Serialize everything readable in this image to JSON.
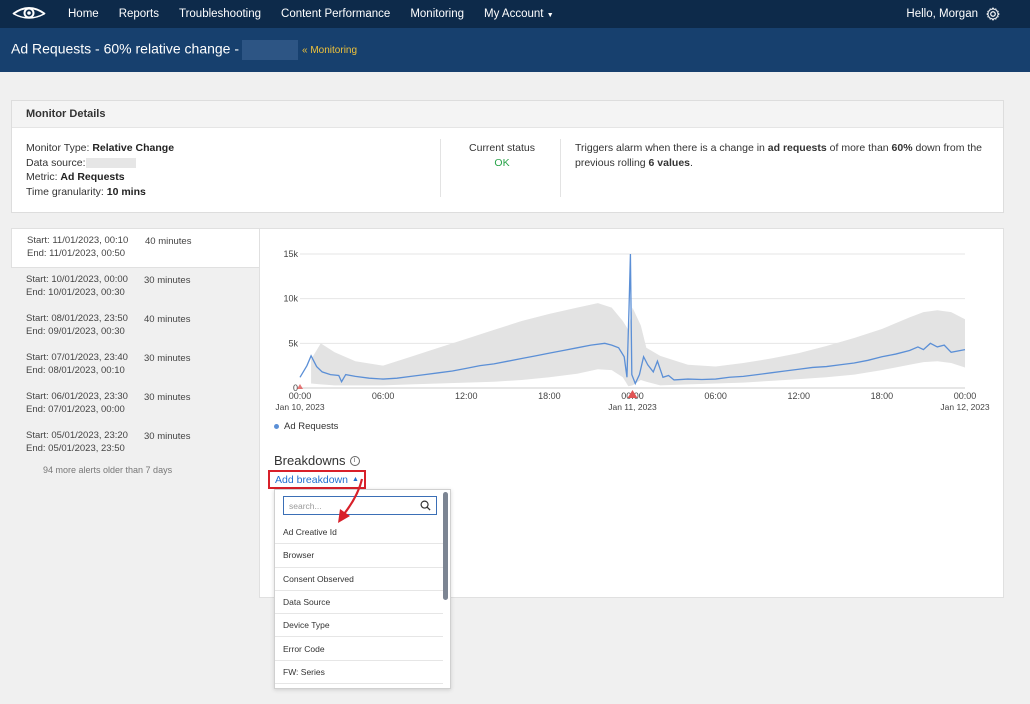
{
  "topnav": {
    "items": [
      "Home",
      "Reports",
      "Troubleshooting",
      "Content Performance",
      "Monitoring",
      "My Account"
    ],
    "greeting": "Hello, Morgan"
  },
  "banner": {
    "title": "Ad Requests - 60% relative change -",
    "link": "« Monitoring"
  },
  "details": {
    "heading": "Monitor Details",
    "monitor_type_label": "Monitor Type:",
    "monitor_type": "Relative Change",
    "data_source_label": "Data source:",
    "metric_label": "Metric:",
    "metric": "Ad Requests",
    "granularity_label": "Time granularity:",
    "granularity": "10 mins",
    "status_label": "Current status",
    "status": "OK",
    "trigger_pre": "Triggers alarm when there is a change in",
    "trigger_metric": "ad requests",
    "trigger_mid": "of more than",
    "trigger_pct": "60%",
    "trigger_mid2": "down from the previous rolling",
    "trigger_values": "6 values",
    "trigger_end": "."
  },
  "alerts": [
    {
      "start": "Start: 11/01/2023, 00:10",
      "end": "End: 11/01/2023, 00:50",
      "duration": "40 minutes"
    },
    {
      "start": "Start: 10/01/2023, 00:00",
      "end": "End: 10/01/2023, 00:30",
      "duration": "30 minutes"
    },
    {
      "start": "Start: 08/01/2023, 23:50",
      "end": "End: 09/01/2023, 00:30",
      "duration": "40 minutes"
    },
    {
      "start": "Start: 07/01/2023, 23:40",
      "end": "End: 08/01/2023, 00:10",
      "duration": "30 minutes"
    },
    {
      "start": "Start: 06/01/2023, 23:30",
      "end": "End: 07/01/2023, 00:00",
      "duration": "30 minutes"
    },
    {
      "start": "Start: 05/01/2023, 23:20",
      "end": "End: 05/01/2023, 23:50",
      "duration": "30 minutes"
    }
  ],
  "more_alerts": "94 more alerts older than 7 days",
  "breakdowns": {
    "title": "Breakdowns",
    "info": "i",
    "add_label": "Add breakdown",
    "search_placeholder": "search...",
    "options": [
      "Ad Creative Id",
      "Browser",
      "Consent Observed",
      "Data Source",
      "Device Type",
      "Error Code",
      "FW: Series"
    ]
  },
  "colors": {
    "nav_bg": "#0d2a4a",
    "banner_bg": "#17406e",
    "link": "#f0c23a",
    "line": "#5b8fd6",
    "band": "#e3e3e3",
    "ok": "#2aa44a",
    "alarm_marker": "#e05555",
    "highlight": "#d8202a"
  },
  "chart_data": {
    "type": "line",
    "legend": "Ad Requests",
    "x_ticks": [
      "00:00",
      "06:00",
      "12:00",
      "18:00",
      "00:00",
      "06:00",
      "12:00",
      "18:00",
      "00:00"
    ],
    "x_date_labels": {
      "0": "Jan 10, 2023",
      "4": "Jan 11, 2023",
      "8": "Jan 12, 2023"
    },
    "y_ticks": [
      "0",
      "5k",
      "10k",
      "15k"
    ],
    "ylim": [
      0,
      15000
    ],
    "xlim_hours": [
      0,
      48
    ],
    "grid": true,
    "series": [
      {
        "name": "Ad Requests",
        "points": [
          [
            0,
            1200
          ],
          [
            0.5,
            2500
          ],
          [
            0.8,
            3600
          ],
          [
            1.2,
            2400
          ],
          [
            1.6,
            1800
          ],
          [
            2.2,
            1500
          ],
          [
            2.8,
            1400
          ],
          [
            3.0,
            700
          ],
          [
            3.3,
            1500
          ],
          [
            4,
            1300
          ],
          [
            5,
            1100
          ],
          [
            6,
            1000
          ],
          [
            7,
            1100
          ],
          [
            8,
            1300
          ],
          [
            9,
            1500
          ],
          [
            10,
            1700
          ],
          [
            11,
            1900
          ],
          [
            12,
            2200
          ],
          [
            13,
            2500
          ],
          [
            14,
            2700
          ],
          [
            15,
            3000
          ],
          [
            16,
            3300
          ],
          [
            17,
            3600
          ],
          [
            18,
            3900
          ],
          [
            19,
            4200
          ],
          [
            20,
            4500
          ],
          [
            21,
            4800
          ],
          [
            22,
            5000
          ],
          [
            22.5,
            4800
          ],
          [
            23,
            4500
          ],
          [
            23.4,
            3500
          ],
          [
            23.6,
            1200
          ],
          [
            23.75,
            9000
          ],
          [
            23.85,
            15000
          ],
          [
            23.95,
            1500
          ],
          [
            24.2,
            500
          ],
          [
            24.5,
            1500
          ],
          [
            24.8,
            3500
          ],
          [
            25.1,
            2600
          ],
          [
            25.5,
            1800
          ],
          [
            25.8,
            3000
          ],
          [
            26.2,
            1200
          ],
          [
            26.6,
            1400
          ],
          [
            27,
            900
          ],
          [
            28,
            1000
          ],
          [
            29,
            950
          ],
          [
            30,
            1000
          ],
          [
            31,
            1200
          ],
          [
            32,
            1300
          ],
          [
            33,
            1500
          ],
          [
            34,
            1700
          ],
          [
            35,
            1900
          ],
          [
            36,
            2100
          ],
          [
            37,
            2300
          ],
          [
            38,
            2400
          ],
          [
            39,
            2600
          ],
          [
            40,
            2800
          ],
          [
            41,
            3100
          ],
          [
            42,
            3500
          ],
          [
            43,
            3800
          ],
          [
            44,
            4200
          ],
          [
            44.6,
            4600
          ],
          [
            45,
            4300
          ],
          [
            45.5,
            5000
          ],
          [
            46,
            4600
          ],
          [
            46.5,
            4800
          ],
          [
            47,
            4000
          ],
          [
            48,
            4300
          ]
        ],
        "band_upper": [
          [
            0.8,
            3200
          ],
          [
            1.5,
            5000
          ],
          [
            2.5,
            4000
          ],
          [
            4,
            3000
          ],
          [
            6,
            2500
          ],
          [
            8,
            3500
          ],
          [
            10,
            4500
          ],
          [
            12,
            5500
          ],
          [
            14,
            6500
          ],
          [
            16,
            7500
          ],
          [
            18,
            8300
          ],
          [
            20,
            9000
          ],
          [
            21.5,
            9500
          ],
          [
            22.5,
            9000
          ],
          [
            23.3,
            7500
          ],
          [
            23.7,
            6500
          ],
          [
            24,
            9000
          ],
          [
            24.6,
            7000
          ],
          [
            25,
            4500
          ],
          [
            26,
            3600
          ],
          [
            28,
            2600
          ],
          [
            30,
            2400
          ],
          [
            32,
            2800
          ],
          [
            34,
            3300
          ],
          [
            36,
            3900
          ],
          [
            38,
            4700
          ],
          [
            40,
            5600
          ],
          [
            42,
            6600
          ],
          [
            44,
            7900
          ],
          [
            45,
            8500
          ],
          [
            46,
            8700
          ],
          [
            47,
            8500
          ],
          [
            48,
            7700
          ]
        ],
        "band_lower": [
          [
            48,
            2300
          ],
          [
            47,
            2800
          ],
          [
            46,
            3000
          ],
          [
            45,
            2900
          ],
          [
            44,
            2600
          ],
          [
            42,
            2000
          ],
          [
            40,
            1500
          ],
          [
            38,
            1200
          ],
          [
            36,
            1000
          ],
          [
            34,
            800
          ],
          [
            32,
            600
          ],
          [
            30,
            500
          ],
          [
            28,
            400
          ],
          [
            26,
            300
          ],
          [
            25,
            700
          ],
          [
            24.6,
            900
          ],
          [
            24,
            300
          ],
          [
            23.7,
            200
          ],
          [
            23.3,
            1200
          ],
          [
            22.5,
            2000
          ],
          [
            21.5,
            2100
          ],
          [
            20,
            1600
          ],
          [
            18,
            1200
          ],
          [
            16,
            900
          ],
          [
            14,
            700
          ],
          [
            12,
            600
          ],
          [
            10,
            500
          ],
          [
            8,
            400
          ],
          [
            6,
            300
          ],
          [
            4,
            300
          ],
          [
            2.5,
            300
          ],
          [
            1.5,
            400
          ],
          [
            0.8,
            500
          ]
        ]
      }
    ],
    "alarm_markers_hours": [
      24
    ]
  }
}
